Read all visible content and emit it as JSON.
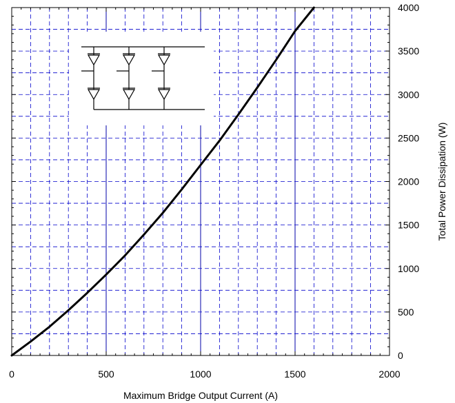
{
  "chart_data": {
    "type": "line",
    "title": "",
    "xlabel": "Maximum Bridge Output Current (A)",
    "ylabel": "Total Power Dissipation (W)",
    "xlim": [
      0,
      2000
    ],
    "ylim": [
      0,
      4000
    ],
    "x_ticks": [
      "0",
      "500",
      "1000",
      "1500",
      "2000"
    ],
    "y_ticks": [
      "0",
      "500",
      "1000",
      "1500",
      "2000",
      "2500",
      "3000",
      "3500",
      "4000"
    ],
    "y_axis_position": "right",
    "grid": true,
    "grid_style": {
      "major_color": "#0000aa",
      "minor_color": "#0000cc",
      "minor_dashed": true,
      "x_minor_step": 100,
      "y_minor_step": 250
    },
    "series": [
      {
        "color": "#000000",
        "x": [
          0,
          100,
          200,
          300,
          400,
          500,
          600,
          700,
          800,
          900,
          1000,
          1100,
          1200,
          1300,
          1400,
          1500,
          1600,
          1670
        ],
        "values": [
          0,
          160,
          330,
          520,
          720,
          930,
          1150,
          1390,
          1640,
          1910,
          2190,
          2470,
          2770,
          3080,
          3400,
          3730,
          4000,
          4000
        ]
      }
    ],
    "inset": {
      "description_icon": "three-phase-diode-bridge-schematic",
      "legs": 3
    }
  }
}
